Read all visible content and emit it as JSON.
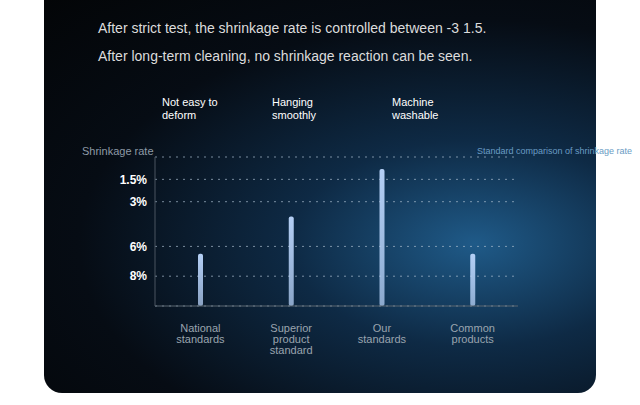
{
  "chart_data": {
    "type": "bar",
    "title": "After strict test, the shrinkage rate is controlled between -3 1.5.",
    "subtitle": "After long-term cleaning, no shrinkage reaction can be seen.",
    "y_label": "Shrinkage rate",
    "caption": "Standard comparison of shrinkage rate",
    "annotations": [
      "Not easy to deform",
      "Hanging smoothly",
      "Machine washable"
    ],
    "categories": [
      "National standards",
      "Superior product standard",
      "Our standards",
      "Common products"
    ],
    "values": [
      6.5,
      4,
      0.8,
      6.5
    ],
    "color": "#b4cff5",
    "ylim": [
      10,
      0
    ],
    "yticks": [
      {
        "value": 1.5,
        "label": "1.5%"
      },
      {
        "value": 3,
        "label": "3%"
      },
      {
        "value": 6,
        "label": "6%"
      },
      {
        "value": 8,
        "label": "8%"
      }
    ],
    "grid": true
  }
}
